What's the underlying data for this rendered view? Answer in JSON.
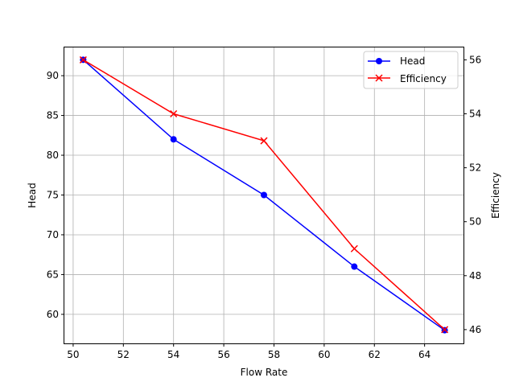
{
  "chart_data": {
    "type": "line",
    "xlabel": "Flow Rate",
    "ylabel_left": "Head",
    "ylabel_right": "Efficiency",
    "ylabel_left_color": "#0000ff",
    "ylabel_right_color": "#ff0000",
    "x": [
      50.4,
      54.0,
      57.6,
      61.2,
      64.8
    ],
    "xlim": [
      49.65,
      65.55
    ],
    "ylim_left": [
      56.35,
      93.65
    ],
    "ylim_right": [
      45.49,
      56.49
    ],
    "xticks": [
      50,
      52,
      54,
      56,
      58,
      60,
      62,
      64
    ],
    "yticks_left": [
      60,
      65,
      70,
      75,
      80,
      85,
      90
    ],
    "yticks_right": [
      46,
      48,
      50,
      52,
      54,
      56
    ],
    "grid": true,
    "legend_position": "top-right",
    "series": [
      {
        "name": "Head",
        "axis": "left",
        "color": "#0000ff",
        "marker": "circle",
        "values": [
          92,
          82,
          75,
          66,
          58
        ]
      },
      {
        "name": "Efficiency",
        "axis": "right",
        "color": "#ff0000",
        "marker": "x",
        "values": [
          56,
          54,
          53,
          49,
          46
        ]
      }
    ]
  }
}
